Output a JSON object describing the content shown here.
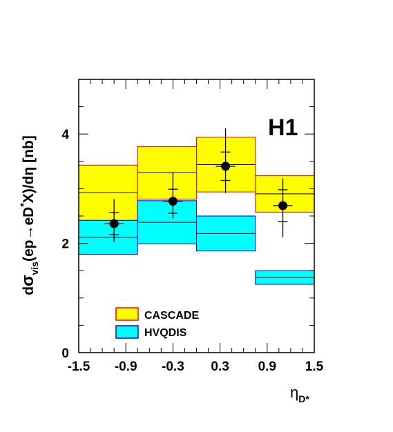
{
  "chart_data": {
    "type": "histogram-bands",
    "experiment_label": "H1",
    "ylabel": {
      "prefix": "d",
      "sigma": "σ",
      "vis": "vis",
      "middle": "(ep→eD",
      "star": "*",
      "suffix": "X)/dη [nb]"
    },
    "xlabel": {
      "eta": "η",
      "sub": "D*"
    },
    "xlim": [
      -1.5,
      1.5
    ],
    "ylim": [
      0,
      5
    ],
    "x_ticks": [
      "-1.5",
      "-0.9",
      "-0.3",
      "0.3",
      "0.9",
      "1.5"
    ],
    "y_ticks": [
      "0",
      "2",
      "4"
    ],
    "bins": [
      {
        "x_low": -1.5,
        "x_high": -0.75
      },
      {
        "x_low": -0.75,
        "x_high": 0.0
      },
      {
        "x_low": 0.0,
        "x_high": 0.75
      },
      {
        "x_low": 0.75,
        "x_high": 1.5
      }
    ],
    "series": [
      {
        "name": "CASCADE",
        "fill": "#ffff00",
        "edge": "#ff0000",
        "bands": [
          {
            "low": 2.42,
            "high": 3.43
          },
          {
            "low": 2.81,
            "high": 3.77
          },
          {
            "low": 2.94,
            "high": 3.94
          },
          {
            "low": 2.57,
            "high": 3.24
          }
        ]
      },
      {
        "name": "HVQDIS",
        "fill": "#00ffff",
        "edge": "#0000ff",
        "bands": [
          {
            "low": 1.8,
            "high": 2.42
          },
          {
            "low": 1.99,
            "high": 2.78
          },
          {
            "low": 1.86,
            "high": 2.5
          },
          {
            "low": 1.25,
            "high": 1.5
          }
        ]
      }
    ],
    "data_points": [
      {
        "x": -1.05,
        "y": 2.36,
        "stat_low": 2.16,
        "stat_high": 2.56,
        "tot_low": 2.02,
        "tot_high": 2.81
      },
      {
        "x": -0.3,
        "y": 2.77,
        "stat_low": 2.55,
        "stat_high": 2.99,
        "tot_low": 2.46,
        "tot_high": 3.3
      },
      {
        "x": 0.37,
        "y": 3.41,
        "stat_low": 3.15,
        "stat_high": 3.67,
        "tot_low": 2.92,
        "tot_high": 4.1
      },
      {
        "x": 1.1,
        "y": 2.69,
        "stat_low": 2.4,
        "stat_high": 2.98,
        "tot_low": 2.11,
        "tot_high": 3.19
      }
    ],
    "legend_position": "bottom-left"
  }
}
